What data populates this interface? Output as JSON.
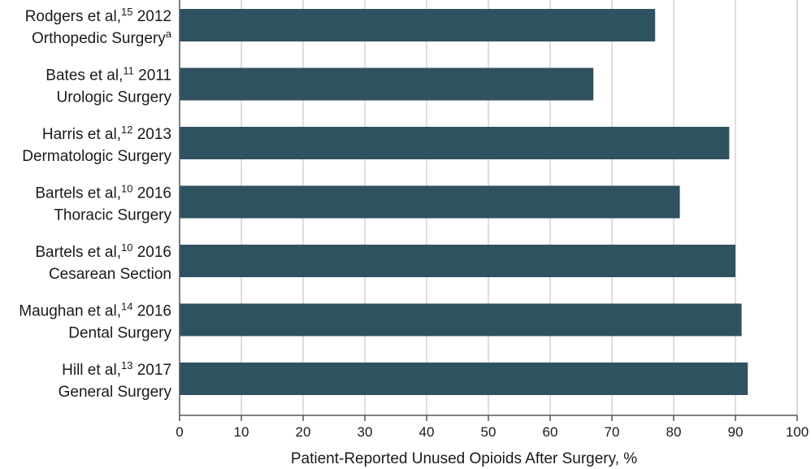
{
  "chart_data": {
    "type": "bar",
    "orientation": "horizontal",
    "categories": [
      {
        "author": "Rodgers et al,",
        "ref": "15",
        "year": "2012",
        "procedure": "Orthopedic Surgery",
        "note": "a"
      },
      {
        "author": "Bates et al,",
        "ref": "11",
        "year": "2011",
        "procedure": "Urologic Surgery",
        "note": ""
      },
      {
        "author": "Harris et al,",
        "ref": "12",
        "year": "2013",
        "procedure": "Dermatologic Surgery",
        "note": ""
      },
      {
        "author": "Bartels et al,",
        "ref": "10",
        "year": "2016",
        "procedure": "Thoracic Surgery",
        "note": ""
      },
      {
        "author": "Bartels et al,",
        "ref": "10",
        "year": "2016",
        "procedure": "Cesarean Section",
        "note": ""
      },
      {
        "author": "Maughan et al,",
        "ref": "14",
        "year": "2016",
        "procedure": "Dental Surgery",
        "note": ""
      },
      {
        "author": "Hill et al,",
        "ref": "13",
        "year": "2017",
        "procedure": "General Surgery",
        "note": ""
      }
    ],
    "values": [
      77,
      67,
      89,
      81,
      90,
      91,
      92
    ],
    "xlabel": "Patient-Reported Unused Opioids After Surgery, %",
    "xlim": [
      0,
      100
    ],
    "xticks": [
      0,
      10,
      20,
      30,
      40,
      50,
      60,
      70,
      80,
      90,
      100
    ],
    "grid": "vertical",
    "bar_color": "#2f5260",
    "grid_color": "#c8c8c8",
    "axis_color": "#555555"
  }
}
